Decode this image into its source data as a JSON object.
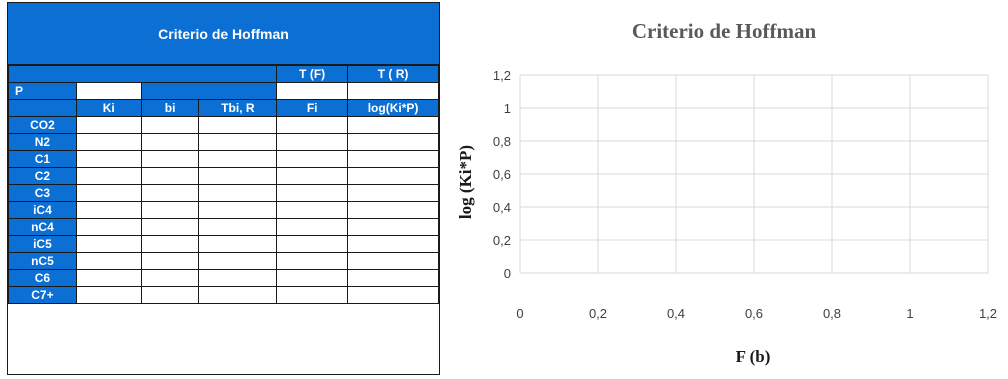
{
  "table": {
    "title": "Criterio de Hoffman",
    "temp_headers": [
      "T (F)",
      "T ( R)"
    ],
    "pressure_label": "P",
    "col_headers": [
      "Ki",
      "bi",
      "Tbi, R",
      "Fi",
      "log(Ki*P)"
    ],
    "components": [
      "CO2",
      "N2",
      "C1",
      "C2",
      "C3",
      "iC4",
      "nC4",
      "iC5",
      "nC5",
      "C6",
      "C7+"
    ]
  },
  "colors": {
    "header_blue": "#0c6fd4",
    "grid": "#d9d9d9",
    "title_gray": "#595959"
  },
  "chart_data": {
    "type": "scatter",
    "title": "Criterio de Hoffman",
    "xlabel": "F (b)",
    "ylabel": "log (Ki*P)",
    "xlim": [
      0,
      1.2
    ],
    "ylim": [
      0,
      1.2
    ],
    "x_ticks": [
      "0",
      "0,2",
      "0,4",
      "0,6",
      "0,8",
      "1",
      "1,2"
    ],
    "y_ticks": [
      "0",
      "0,2",
      "0,4",
      "0,6",
      "0,8",
      "1",
      "1,2"
    ],
    "grid": true,
    "series": []
  }
}
